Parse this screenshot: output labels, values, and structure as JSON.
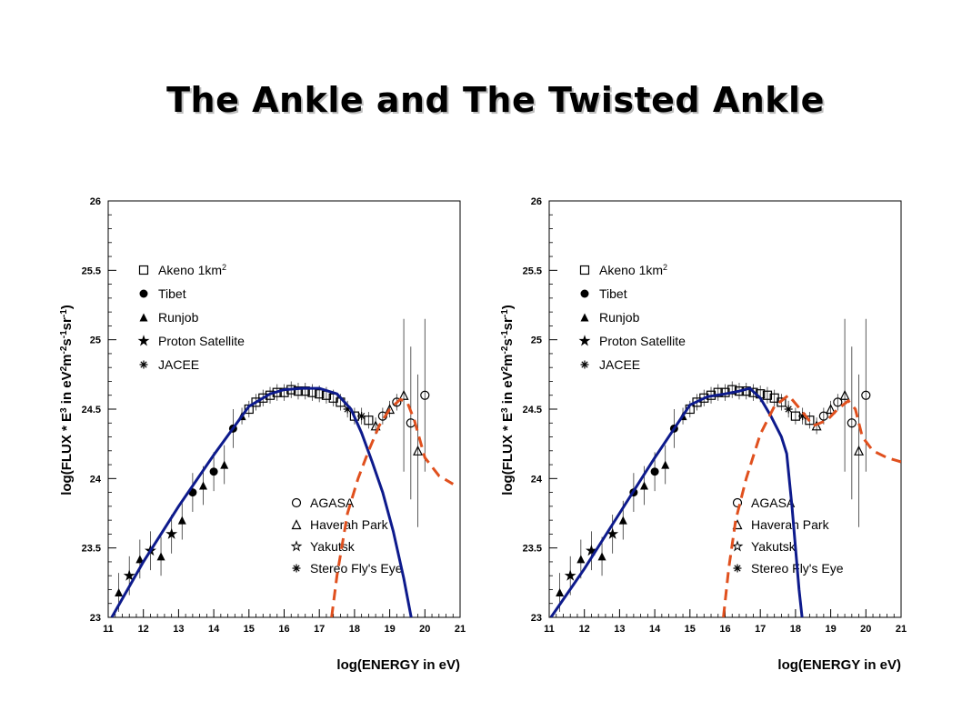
{
  "slide": {
    "title": "The Ankle and The Twisted Ankle"
  },
  "colors": {
    "model_fit": "#0d1a8c",
    "extragalactic": "#e0501e",
    "data": "#000000"
  },
  "chart_data": [
    {
      "type": "line",
      "panel": "left",
      "xlabel": "log(ENERGY in eV)",
      "ylabel": "log(FLUX * E3 in eV2m-2s-1sr-1)",
      "ylabel_parts": {
        "main": "log(FLUX * E",
        "e3": "3",
        "mid": " in eV",
        "p2": "2",
        "m": "m",
        "m2": "-2",
        "s": "s",
        "s1": "-1",
        "sr": "sr",
        "sr1": "-1",
        "close": ")"
      },
      "xlim": [
        11,
        21
      ],
      "ylim": [
        23,
        26
      ],
      "xticks": [
        "11",
        "12",
        "13",
        "14",
        "15",
        "16",
        "17",
        "18",
        "19",
        "20",
        "21"
      ],
      "yticks": [
        "23",
        "23.5",
        "24",
        "24.5",
        "25",
        "25.5",
        "26"
      ],
      "legend_top": [
        {
          "marker": "square-open",
          "label": "Akeno 1km",
          "sup": "2"
        },
        {
          "marker": "circle-filled",
          "label": "Tibet"
        },
        {
          "marker": "triangle-filled",
          "label": "Runjob"
        },
        {
          "marker": "star-filled",
          "label": "Proton Satellite"
        },
        {
          "marker": "asterisk",
          "label": "JACEE"
        }
      ],
      "legend_bottom": [
        {
          "marker": "circle-open",
          "label": "AGASA"
        },
        {
          "marker": "triangle-open",
          "label": "Haverah Park"
        },
        {
          "marker": "star-open",
          "label": "Yakutsk"
        },
        {
          "marker": "asterisk",
          "label": "Stereo Fly's Eye"
        }
      ],
      "series": [
        {
          "style": "solid-blue",
          "x": [
            11.1,
            12,
            13,
            14,
            15,
            15.6,
            16,
            16.5,
            17,
            17.5,
            17.9,
            18.2,
            18.5,
            18.8,
            19.1,
            19.4,
            19.7,
            19.95
          ],
          "y": [
            23.0,
            23.4,
            23.8,
            24.17,
            24.52,
            24.61,
            24.64,
            24.65,
            24.65,
            24.61,
            24.5,
            24.33,
            24.12,
            23.9,
            23.62,
            23.28,
            22.88,
            22.55
          ]
        },
        {
          "style": "dashed-red",
          "x": [
            17.35,
            17.5,
            17.8,
            18.1,
            18.4,
            18.7,
            19,
            19.3,
            19.5,
            19.7,
            20,
            20.4,
            20.8
          ],
          "y": [
            23.0,
            23.3,
            23.75,
            24.0,
            24.2,
            24.38,
            24.5,
            24.57,
            24.55,
            24.42,
            24.15,
            24.02,
            23.96
          ]
        },
        {
          "style": "data",
          "name": "measurements",
          "x": [
            11.3,
            11.6,
            11.9,
            12.2,
            12.5,
            12.8,
            13.1,
            13.4,
            13.7,
            14.0,
            14.3,
            14.55,
            14.8,
            15.0,
            15.2,
            15.4,
            15.6,
            15.8,
            16.0,
            16.2,
            16.4,
            16.6,
            16.8,
            17.0,
            17.2,
            17.4,
            17.6,
            17.8,
            18.0,
            18.2,
            18.4,
            18.6,
            18.8,
            19.0,
            19.2,
            19.4,
            19.6,
            19.8,
            20.0
          ],
          "y": [
            23.18,
            23.3,
            23.42,
            23.48,
            23.44,
            23.6,
            23.7,
            23.9,
            23.95,
            24.05,
            24.1,
            24.36,
            24.45,
            24.5,
            24.55,
            24.58,
            24.6,
            24.62,
            24.62,
            24.64,
            24.63,
            24.63,
            24.62,
            24.61,
            24.6,
            24.58,
            24.55,
            24.5,
            24.45,
            24.45,
            24.42,
            24.38,
            24.45,
            24.5,
            24.55,
            24.6,
            24.4,
            24.2,
            24.6
          ]
        }
      ]
    },
    {
      "type": "line",
      "panel": "right",
      "xlabel": "log(ENERGY in eV)",
      "ylabel": "log(FLUX * E3 in eV2m-2s-1sr-1)",
      "xlim": [
        11,
        21
      ],
      "ylim": [
        23,
        26
      ],
      "xticks": [
        "11",
        "12",
        "13",
        "14",
        "15",
        "16",
        "17",
        "18",
        "19",
        "20",
        "21"
      ],
      "yticks": [
        "23",
        "23.5",
        "24",
        "24.5",
        "25",
        "25.5",
        "26"
      ],
      "series": [
        {
          "style": "solid-blue",
          "x": [
            11.05,
            12,
            13,
            14,
            15,
            15.5,
            16,
            16.4,
            16.7,
            17,
            17.3,
            17.6,
            17.75,
            17.9,
            18.1,
            18.25,
            18.4
          ],
          "y": [
            23.0,
            23.35,
            23.75,
            24.15,
            24.53,
            24.59,
            24.61,
            24.63,
            24.65,
            24.58,
            24.45,
            24.3,
            24.18,
            23.8,
            23.2,
            22.85,
            22.6
          ]
        },
        {
          "style": "dashed-red",
          "x": [
            15.95,
            16.1,
            16.3,
            16.6,
            17,
            17.4,
            17.8,
            18.2,
            18.5,
            18.9,
            19.2,
            19.5,
            19.7,
            19.9,
            20.2,
            20.6,
            21.0
          ],
          "y": [
            23.0,
            23.35,
            23.7,
            24.0,
            24.32,
            24.52,
            24.6,
            24.48,
            24.38,
            24.42,
            24.5,
            24.56,
            24.5,
            24.3,
            24.2,
            24.15,
            24.12
          ]
        },
        {
          "style": "data",
          "name": "measurements",
          "x": [
            11.3,
            11.6,
            11.9,
            12.2,
            12.5,
            12.8,
            13.1,
            13.4,
            13.7,
            14.0,
            14.3,
            14.55,
            14.8,
            15.0,
            15.2,
            15.4,
            15.6,
            15.8,
            16.0,
            16.2,
            16.4,
            16.6,
            16.8,
            17.0,
            17.2,
            17.4,
            17.6,
            17.8,
            18.0,
            18.2,
            18.4,
            18.6,
            18.8,
            19.0,
            19.2,
            19.4,
            19.6,
            19.8,
            20.0
          ],
          "y": [
            23.18,
            23.3,
            23.42,
            23.48,
            23.44,
            23.6,
            23.7,
            23.9,
            23.95,
            24.05,
            24.1,
            24.36,
            24.45,
            24.5,
            24.55,
            24.58,
            24.6,
            24.62,
            24.62,
            24.64,
            24.63,
            24.63,
            24.62,
            24.61,
            24.6,
            24.58,
            24.55,
            24.5,
            24.45,
            24.45,
            24.42,
            24.38,
            24.45,
            24.5,
            24.55,
            24.6,
            24.4,
            24.2,
            24.6
          ]
        }
      ]
    }
  ]
}
